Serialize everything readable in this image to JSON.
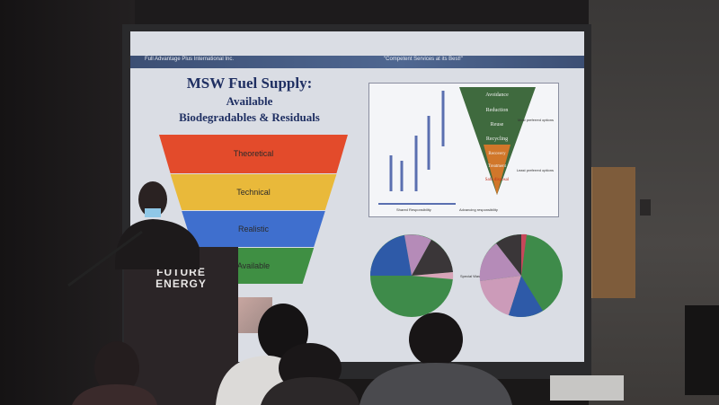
{
  "slide": {
    "header_left": "Full Advantage Plus International Inc.",
    "header_right": "\"Competent Services at its Best!\"",
    "title_line1": "MSW Fuel Supply:",
    "title_line2": "Available",
    "title_line3": "Biodegradables & Residuals",
    "funnel": [
      {
        "label": "Theoretical",
        "color": "#e34b2b"
      },
      {
        "label": "Technical",
        "color": "#e9b93a"
      },
      {
        "label": "Realistic",
        "color": "#3f6fce"
      },
      {
        "label": "Available",
        "color": "#3f8f43"
      }
    ],
    "hierarchy": {
      "levels": [
        "Avoidance",
        "Reduction",
        "Reuse",
        "Recycling",
        "Recovery",
        "Treatment",
        "Safe disposal"
      ],
      "label_top": "Most preferred options",
      "label_bottom": "Least preferred options",
      "footer_left": "Shared Responsibility",
      "footer_right": "Advancing responsibility"
    },
    "pie_label": "Special Waste"
  },
  "podium": {
    "logo_line1": "FUTURE",
    "logo_line2": "ENERGY"
  },
  "colors": {
    "slide_bg": "#dadde4",
    "title": "#1f2f62",
    "header_bar": "#4f6791"
  }
}
